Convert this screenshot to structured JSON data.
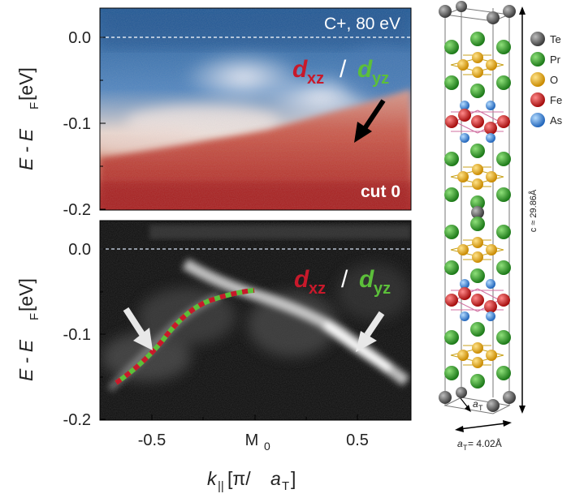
{
  "top_panel": {
    "label_conditions": "C+, 80 eV",
    "label_cut": "cut 0",
    "orbital_1": {
      "sym": "d",
      "sub": "xz",
      "color": "#c8192b"
    },
    "separator": "/",
    "orbital_2": {
      "sym": "d",
      "sub": "yz",
      "color": "#5cbf3a"
    },
    "ylabel": {
      "main": "E - E",
      "sub": "F",
      "unit": " [eV]"
    },
    "yticks": [
      "0.0",
      "-0.1",
      "-0.2"
    ]
  },
  "bottom_panel": {
    "orbital_1": {
      "sym": "d",
      "sub": "xz",
      "color": "#c8192b"
    },
    "separator": "/",
    "orbital_2": {
      "sym": "d",
      "sub": "yz",
      "color": "#5cbf3a"
    },
    "ylabel": {
      "main": "E - E",
      "sub": "F",
      "unit": " [eV]"
    },
    "yticks": [
      "0.0",
      "-0.1",
      "-0.2"
    ],
    "xticks": [
      "-0.5",
      "M",
      "0.5"
    ],
    "xtick_sub": "0",
    "xlabel": {
      "k": "k",
      "ksub": "||",
      "rest": " [π/",
      "a": "a",
      "asub": "T",
      "close": "]"
    }
  },
  "crystal": {
    "legend": [
      {
        "name": "Te",
        "color": "#555555"
      },
      {
        "name": "Pr",
        "color": "#2f9a2a"
      },
      {
        "name": "O",
        "color": "#e6a817"
      },
      {
        "name": "Fe",
        "color": "#d62020"
      },
      {
        "name": "As",
        "color": "#3f8fe0"
      }
    ],
    "c_label": "c ≈ 29.86Å",
    "a_label_main": "a",
    "a_label_sub": "T",
    "a_eq_main": "a",
    "a_eq_sub": "T",
    "a_eq_value": " = 4.02Å"
  }
}
